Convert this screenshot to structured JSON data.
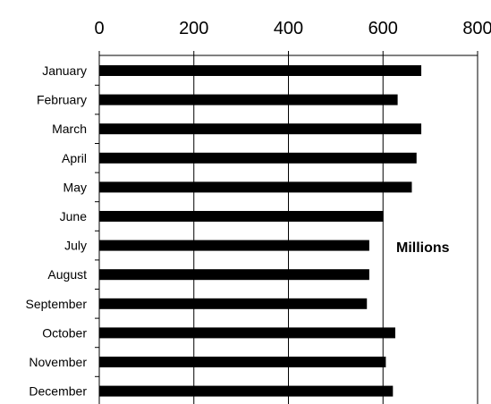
{
  "chart_data": {
    "type": "bar",
    "orientation": "horizontal",
    "categories": [
      "January",
      "February",
      "March",
      "April",
      "May",
      "June",
      "July",
      "August",
      "September",
      "October",
      "November",
      "December"
    ],
    "values": [
      680,
      630,
      680,
      670,
      660,
      600,
      570,
      570,
      565,
      625,
      605,
      620
    ],
    "xlim": [
      0,
      800
    ],
    "x_ticks": [
      "0",
      "200",
      "400",
      "600",
      "800"
    ],
    "x_axis_position": "top",
    "annotation": "Millions",
    "grid": "vertical",
    "bar_color": "#000000"
  }
}
